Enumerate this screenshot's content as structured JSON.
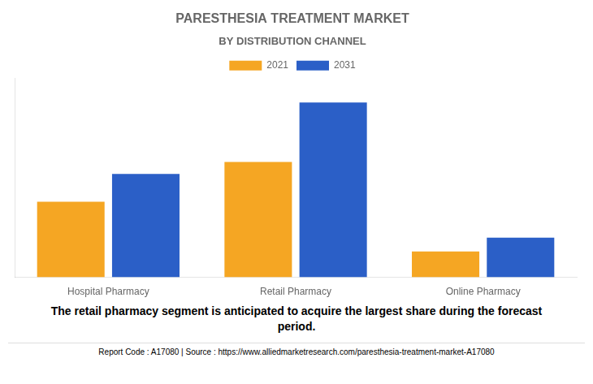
{
  "chart_data": {
    "type": "bar",
    "title": "PARESTHESIA TREATMENT MARKET",
    "subtitle": "BY DISTRIBUTION CHANNEL",
    "categories": [
      "Hospital Pharmacy",
      "Retail Pharmacy",
      "Online Pharmacy"
    ],
    "series": [
      {
        "name": "2021",
        "color": "#F5A623",
        "values": [
          0.38,
          0.58,
          0.13
        ]
      },
      {
        "name": "2031",
        "color": "#2B5FC7",
        "values": [
          0.52,
          0.88,
          0.2
        ]
      }
    ],
    "ylim": [
      0,
      1.0
    ],
    "yticks": [],
    "grid": false,
    "tick_labels": "x",
    "legend": "top",
    "annotations": [
      "The retail pharmacy segment is anticipated to acquire the largest share during the forecast\nperiod.",
      "Report Code : A17080  |  Source : https://www.alliedmarketresearch.com/paresthesia-treatment-market-A17080"
    ]
  }
}
